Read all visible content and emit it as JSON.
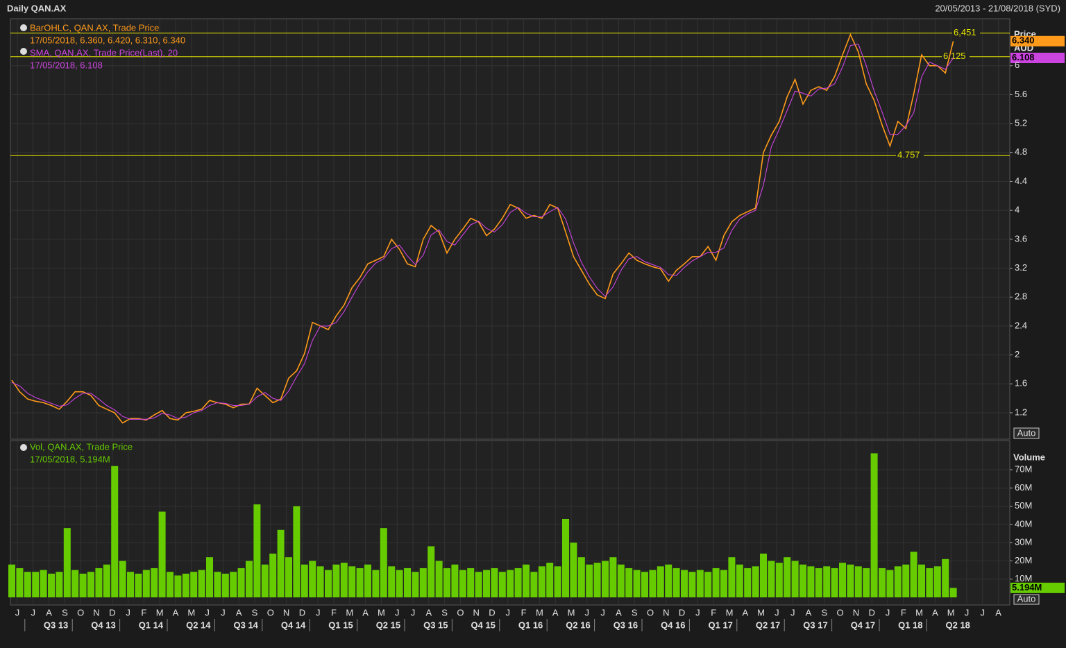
{
  "header": {
    "title": "Daily QAN.AX",
    "range": "20/05/2013 - 21/08/2018 (SYD)"
  },
  "chart_data": [
    {
      "type": "line",
      "y_label": "Price",
      "unit": "AUD",
      "categories": [
        "J",
        null,
        "J",
        null,
        "A",
        null,
        "S",
        null,
        "O",
        null,
        "N",
        null,
        "D",
        null,
        "J",
        null,
        "F",
        null,
        "M",
        null,
        "A",
        null,
        "M",
        null,
        "J",
        null,
        "J",
        null,
        "A",
        null,
        "S",
        null,
        "O",
        null,
        "N",
        null,
        "D",
        null,
        "J",
        null,
        "F",
        null,
        "M",
        null,
        "A",
        null,
        "M",
        null,
        "J",
        null,
        "J",
        null,
        "A",
        null,
        "S",
        null,
        "O",
        null,
        "N",
        null,
        "D",
        null,
        "J",
        null,
        "F",
        null,
        "M",
        null,
        "A",
        null,
        "M",
        null,
        "J",
        null,
        "J",
        null,
        "A",
        null,
        "S",
        null,
        "O",
        null,
        "N",
        null,
        "D",
        null,
        "J",
        null,
        "F",
        null,
        "M",
        null,
        "A",
        null,
        "M",
        null,
        "J",
        null,
        "J",
        null,
        "A",
        null,
        "S",
        null,
        "O",
        null,
        "N",
        null,
        "D",
        null,
        "J",
        null,
        "F",
        null,
        "M",
        null,
        "A",
        null,
        "M",
        null,
        "J",
        null,
        "J",
        null,
        "A",
        null
      ],
      "quarters": [
        "Q3 13",
        "Q4 13",
        "Q1 14",
        "Q2 14",
        "Q3 14",
        "Q4 14",
        "Q1 15",
        "Q2 15",
        "Q3 15",
        "Q4 15",
        "Q1 16",
        "Q2 16",
        "Q3 16",
        "Q4 16",
        "Q1 17",
        "Q2 17",
        "Q3 17",
        "Q4 17",
        "Q1 18",
        "Q2 18"
      ],
      "series": [
        {
          "name": "BarOHLC, QAN.AX, Trade Price",
          "detail": "17/05/2018, 6.360, 6.420, 6.310, 6.340",
          "color": "#ff9a1a",
          "last_label": "6.340",
          "values": [
            1.65,
            1.49,
            1.39,
            1.36,
            1.34,
            1.3,
            1.25,
            1.36,
            1.49,
            1.49,
            1.44,
            1.3,
            1.25,
            1.2,
            1.06,
            1.12,
            1.12,
            1.1,
            1.17,
            1.23,
            1.12,
            1.1,
            1.2,
            1.22,
            1.25,
            1.37,
            1.34,
            1.32,
            1.27,
            1.32,
            1.32,
            1.54,
            1.44,
            1.34,
            1.39,
            1.68,
            1.78,
            2.02,
            2.45,
            2.4,
            2.35,
            2.54,
            2.69,
            2.93,
            3.07,
            3.26,
            3.31,
            3.36,
            3.6,
            3.46,
            3.26,
            3.22,
            3.6,
            3.79,
            3.7,
            3.41,
            3.6,
            3.74,
            3.89,
            3.84,
            3.65,
            3.74,
            3.89,
            4.08,
            4.03,
            3.89,
            3.93,
            3.89,
            4.08,
            4.03,
            3.7,
            3.36,
            3.17,
            2.98,
            2.83,
            2.78,
            3.12,
            3.26,
            3.41,
            3.31,
            3.26,
            3.22,
            3.19,
            3.02,
            3.17,
            3.26,
            3.36,
            3.36,
            3.5,
            3.31,
            3.65,
            3.84,
            3.93,
            3.98,
            4.03,
            4.8,
            5.04,
            5.23,
            5.57,
            5.81,
            5.47,
            5.66,
            5.71,
            5.66,
            5.85,
            6.15,
            6.43,
            6.19,
            5.75,
            5.52,
            5.18,
            4.89,
            5.23,
            5.13,
            5.61,
            6.15,
            6.0,
            6.0,
            5.9,
            6.34,
            null,
            null,
            null,
            null,
            null,
            null
          ]
        },
        {
          "name": "SMA, QAN.AX, Trade Price(Last),  20",
          "detail": "17/05/2018, 6.108",
          "color": "#cc44e0",
          "last_label": "6.108",
          "values": [
            1.62,
            1.57,
            1.47,
            1.41,
            1.37,
            1.33,
            1.29,
            1.31,
            1.4,
            1.47,
            1.47,
            1.39,
            1.3,
            1.24,
            1.15,
            1.11,
            1.11,
            1.11,
            1.13,
            1.19,
            1.17,
            1.12,
            1.14,
            1.2,
            1.23,
            1.3,
            1.34,
            1.33,
            1.3,
            1.3,
            1.32,
            1.42,
            1.48,
            1.4,
            1.37,
            1.5,
            1.7,
            1.88,
            2.2,
            2.4,
            2.4,
            2.45,
            2.6,
            2.8,
            2.99,
            3.15,
            3.27,
            3.33,
            3.47,
            3.52,
            3.37,
            3.25,
            3.38,
            3.66,
            3.73,
            3.57,
            3.52,
            3.66,
            3.8,
            3.85,
            3.75,
            3.7,
            3.8,
            3.97,
            4.04,
            3.96,
            3.91,
            3.91,
            3.98,
            4.04,
            3.88,
            3.55,
            3.28,
            3.08,
            2.92,
            2.81,
            2.94,
            3.17,
            3.33,
            3.36,
            3.29,
            3.25,
            3.21,
            3.11,
            3.1,
            3.21,
            3.3,
            3.36,
            3.42,
            3.42,
            3.48,
            3.72,
            3.88,
            3.95,
            4.0,
            4.35,
            4.88,
            5.12,
            5.38,
            5.65,
            5.62,
            5.58,
            5.68,
            5.69,
            5.75,
            5.98,
            6.28,
            6.3,
            6.0,
            5.65,
            5.36,
            5.05,
            5.05,
            5.17,
            5.35,
            5.85,
            6.05,
            6.0,
            5.95,
            6.108,
            null,
            null,
            null,
            null,
            null,
            null
          ]
        }
      ],
      "ylim": [
        0.835,
        6.65
      ],
      "yticks": [
        1.2,
        1.6,
        2,
        2.4,
        2.8,
        3.2,
        3.6,
        4,
        4.4,
        4.8,
        5.2,
        5.6,
        6
      ],
      "grid": true,
      "hlines": [
        {
          "value": 6.451,
          "label": "6,451"
        },
        {
          "value": 6.125,
          "label": "6.125"
        },
        {
          "value": 4.757,
          "label": "4.757"
        }
      ],
      "hline_color": "#e6e600",
      "scale_button": "Auto"
    },
    {
      "type": "bar",
      "y_label": "Volume",
      "series": [
        {
          "name": "Vol, QAN.AX, Trade Price",
          "detail": "17/05/2018, 5.194M",
          "color": "#66cc00",
          "last_label": "5.194M",
          "values": [
            18000000,
            16000000,
            14000000,
            14000000,
            15000000,
            13000000,
            14000000,
            38000000,
            15000000,
            13000000,
            14000000,
            16000000,
            18000000,
            72000000,
            20000000,
            14000000,
            13000000,
            15000000,
            16000000,
            47000000,
            14000000,
            12000000,
            13000000,
            14000000,
            15000000,
            22000000,
            14000000,
            13000000,
            14000000,
            16000000,
            20000000,
            51000000,
            18000000,
            24000000,
            37000000,
            22000000,
            50000000,
            18000000,
            20000000,
            17000000,
            15000000,
            18000000,
            19000000,
            17000000,
            16000000,
            18000000,
            15000000,
            38000000,
            17000000,
            15000000,
            16000000,
            14000000,
            16000000,
            28000000,
            20000000,
            16000000,
            18000000,
            15000000,
            16000000,
            14000000,
            15000000,
            16000000,
            14000000,
            15000000,
            16000000,
            18000000,
            14000000,
            17000000,
            19000000,
            17000000,
            43000000,
            30000000,
            22000000,
            18000000,
            19000000,
            20000000,
            22000000,
            18000000,
            16000000,
            15000000,
            14000000,
            15000000,
            17000000,
            18000000,
            16000000,
            15000000,
            14000000,
            15000000,
            14000000,
            16000000,
            15000000,
            22000000,
            18000000,
            16000000,
            17000000,
            24000000,
            20000000,
            19000000,
            22000000,
            20000000,
            18000000,
            17000000,
            16000000,
            17000000,
            16000000,
            19000000,
            18000000,
            17000000,
            16000000,
            79000000,
            16000000,
            15000000,
            17000000,
            18000000,
            25000000,
            18000000,
            16000000,
            17000000,
            21000000,
            5194000,
            null,
            null,
            null,
            null,
            null,
            null
          ]
        }
      ],
      "ylim": [
        0,
        86000000
      ],
      "yticks": [
        {
          "value": 10000000,
          "label": "10M"
        },
        {
          "value": 20000000,
          "label": "20M"
        },
        {
          "value": 30000000,
          "label": "30M"
        },
        {
          "value": 40000000,
          "label": "40M"
        },
        {
          "value": 50000000,
          "label": "50M"
        },
        {
          "value": 60000000,
          "label": "60M"
        },
        {
          "value": 70000000,
          "label": "70M"
        }
      ],
      "grid": true,
      "scale_button": "Auto"
    }
  ]
}
